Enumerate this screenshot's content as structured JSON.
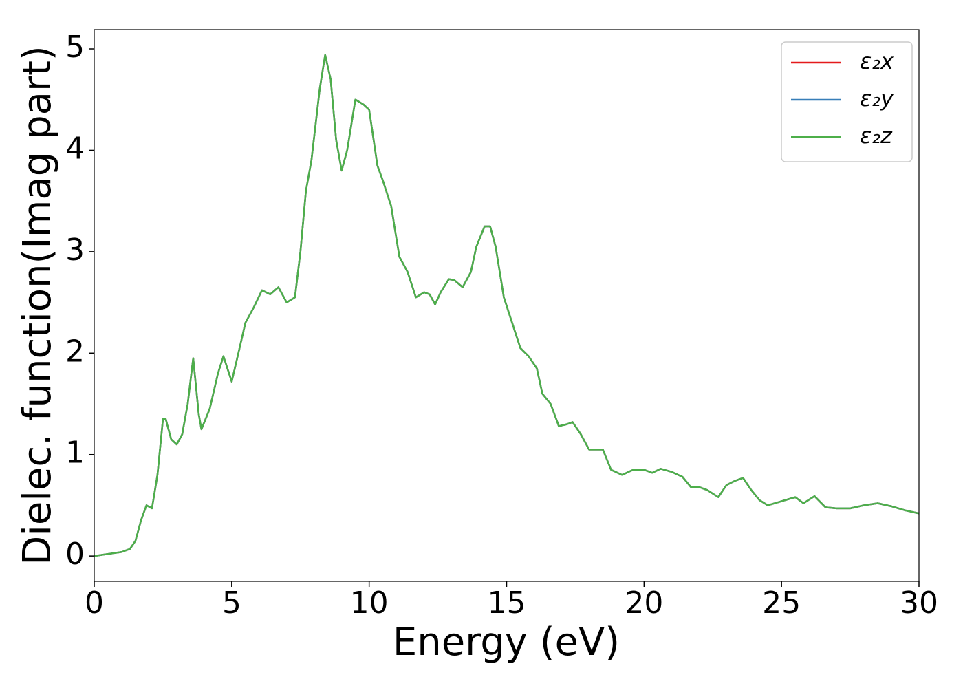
{
  "chart_data": {
    "type": "line",
    "xlabel": "Energy (eV)",
    "ylabel": "Dielec. function(Imag part)",
    "x": [
      0,
      0.5,
      1,
      1.3,
      1.5,
      1.7,
      1.9,
      2.1,
      2.3,
      2.5,
      2.6,
      2.8,
      3.0,
      3.2,
      3.4,
      3.6,
      3.8,
      3.9,
      4.2,
      4.5,
      4.7,
      5.0,
      5.2,
      5.5,
      5.8,
      6.1,
      6.4,
      6.7,
      7.0,
      7.3,
      7.5,
      7.7,
      7.9,
      8.2,
      8.4,
      8.6,
      8.8,
      9.0,
      9.2,
      9.5,
      9.8,
      10.0,
      10.3,
      10.5,
      10.8,
      11.1,
      11.4,
      11.7,
      12.0,
      12.2,
      12.4,
      12.6,
      12.9,
      13.1,
      13.4,
      13.7,
      13.9,
      14.2,
      14.4,
      14.6,
      14.9,
      15.2,
      15.5,
      15.8,
      16.1,
      16.3,
      16.6,
      16.9,
      17.2,
      17.4,
      17.7,
      18.0,
      18.3,
      18.5,
      18.8,
      19.2,
      19.6,
      20.0,
      20.3,
      20.6,
      21.0,
      21.4,
      21.7,
      22.0,
      22.3,
      22.7,
      23.0,
      23.3,
      23.6,
      23.9,
      24.2,
      24.5,
      25.0,
      25.5,
      25.8,
      26.2,
      26.6,
      27.0,
      27.5,
      28.0,
      28.5,
      29.0,
      29.5,
      30.0
    ],
    "series": [
      {
        "name": "ε₂x",
        "color": "#e41a1c",
        "values": [
          0,
          0.02,
          0.04,
          0.07,
          0.15,
          0.35,
          0.5,
          0.47,
          0.8,
          1.35,
          1.35,
          1.15,
          1.1,
          1.2,
          1.5,
          1.95,
          1.4,
          1.25,
          1.45,
          1.8,
          1.97,
          1.72,
          1.95,
          2.3,
          2.45,
          2.62,
          2.58,
          2.65,
          2.5,
          2.55,
          3.0,
          3.6,
          3.9,
          4.6,
          4.94,
          4.7,
          4.1,
          3.8,
          4.0,
          4.5,
          4.45,
          4.4,
          3.85,
          3.7,
          3.45,
          2.95,
          2.8,
          2.55,
          2.6,
          2.58,
          2.48,
          2.6,
          2.73,
          2.72,
          2.65,
          2.8,
          3.05,
          3.25,
          3.25,
          3.05,
          2.55,
          2.3,
          2.05,
          1.97,
          1.85,
          1.6,
          1.5,
          1.28,
          1.3,
          1.32,
          1.2,
          1.05,
          1.05,
          1.05,
          0.85,
          0.8,
          0.85,
          0.85,
          0.82,
          0.86,
          0.83,
          0.78,
          0.68,
          0.68,
          0.65,
          0.58,
          0.7,
          0.74,
          0.77,
          0.65,
          0.55,
          0.5,
          0.54,
          0.58,
          0.52,
          0.59,
          0.48,
          0.47,
          0.47,
          0.5,
          0.52,
          0.49,
          0.45,
          0.42
        ]
      },
      {
        "name": "ε₂y",
        "color": "#377eb8",
        "values": [
          0,
          0.02,
          0.04,
          0.07,
          0.15,
          0.35,
          0.5,
          0.47,
          0.8,
          1.35,
          1.35,
          1.15,
          1.1,
          1.2,
          1.5,
          1.95,
          1.4,
          1.25,
          1.45,
          1.8,
          1.97,
          1.72,
          1.95,
          2.3,
          2.45,
          2.62,
          2.58,
          2.65,
          2.5,
          2.55,
          3.0,
          3.6,
          3.9,
          4.6,
          4.94,
          4.7,
          4.1,
          3.8,
          4.0,
          4.5,
          4.45,
          4.4,
          3.85,
          3.7,
          3.45,
          2.95,
          2.8,
          2.55,
          2.6,
          2.58,
          2.48,
          2.6,
          2.73,
          2.72,
          2.65,
          2.8,
          3.05,
          3.25,
          3.25,
          3.05,
          2.55,
          2.3,
          2.05,
          1.97,
          1.85,
          1.6,
          1.5,
          1.28,
          1.3,
          1.32,
          1.2,
          1.05,
          1.05,
          1.05,
          0.85,
          0.8,
          0.85,
          0.85,
          0.82,
          0.86,
          0.83,
          0.78,
          0.68,
          0.68,
          0.65,
          0.58,
          0.7,
          0.74,
          0.77,
          0.65,
          0.55,
          0.5,
          0.54,
          0.58,
          0.52,
          0.59,
          0.48,
          0.47,
          0.47,
          0.5,
          0.52,
          0.49,
          0.45,
          0.42
        ]
      },
      {
        "name": "ε₂z",
        "color": "#4daf4a",
        "values": [
          0,
          0.02,
          0.04,
          0.07,
          0.15,
          0.35,
          0.5,
          0.47,
          0.8,
          1.35,
          1.35,
          1.15,
          1.1,
          1.2,
          1.5,
          1.95,
          1.4,
          1.25,
          1.45,
          1.8,
          1.97,
          1.72,
          1.95,
          2.3,
          2.45,
          2.62,
          2.58,
          2.65,
          2.5,
          2.55,
          3.0,
          3.6,
          3.9,
          4.6,
          4.94,
          4.7,
          4.1,
          3.8,
          4.0,
          4.5,
          4.45,
          4.4,
          3.85,
          3.7,
          3.45,
          2.95,
          2.8,
          2.55,
          2.6,
          2.58,
          2.48,
          2.6,
          2.73,
          2.72,
          2.65,
          2.8,
          3.05,
          3.25,
          3.25,
          3.05,
          2.55,
          2.3,
          2.05,
          1.97,
          1.85,
          1.6,
          1.5,
          1.28,
          1.3,
          1.32,
          1.2,
          1.05,
          1.05,
          1.05,
          0.85,
          0.8,
          0.85,
          0.85,
          0.82,
          0.86,
          0.83,
          0.78,
          0.68,
          0.68,
          0.65,
          0.58,
          0.7,
          0.74,
          0.77,
          0.65,
          0.55,
          0.5,
          0.54,
          0.58,
          0.52,
          0.59,
          0.48,
          0.47,
          0.47,
          0.5,
          0.52,
          0.49,
          0.45,
          0.42
        ]
      }
    ],
    "xlim": [
      0,
      30
    ],
    "xticks": [
      0,
      5,
      10,
      15,
      20,
      25,
      30
    ],
    "ylim": [
      -0.25,
      5.19
    ],
    "yticks": [
      0,
      1,
      2,
      3,
      4,
      5
    ],
    "legend": "upper right"
  }
}
